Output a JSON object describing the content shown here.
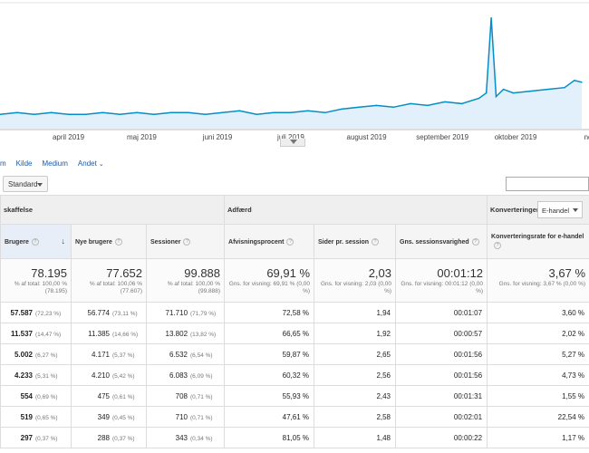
{
  "chart": {
    "month_labels": [
      "april 2019",
      "maj 2019",
      "juni 2019",
      "juli 2019",
      "august 2019",
      "september 2019",
      "oktober 2019",
      "novemb"
    ],
    "line_color": "#058dc7",
    "area_color": "#e1f0fa"
  },
  "chart_data": {
    "type": "area",
    "x": [
      "2019-03-18",
      "2019-03-25",
      "2019-04-01",
      "2019-04-08",
      "2019-04-15",
      "2019-04-22",
      "2019-04-29",
      "2019-05-06",
      "2019-05-13",
      "2019-05-20",
      "2019-05-27",
      "2019-06-03",
      "2019-06-10",
      "2019-06-17",
      "2019-06-24",
      "2019-07-01",
      "2019-07-08",
      "2019-07-15",
      "2019-07-22",
      "2019-07-29",
      "2019-08-05",
      "2019-08-12",
      "2019-08-19",
      "2019-08-26",
      "2019-09-02",
      "2019-09-09",
      "2019-09-16",
      "2019-09-23",
      "2019-09-30",
      "2019-10-03",
      "2019-10-05",
      "2019-10-07",
      "2019-10-10",
      "2019-10-14",
      "2019-10-21",
      "2019-10-28",
      "2019-11-04",
      "2019-11-08",
      "2019-11-11"
    ],
    "values": [
      8,
      9,
      8,
      9,
      8,
      8,
      9,
      8,
      9,
      8,
      9,
      9,
      8,
      9,
      10,
      8,
      9,
      9,
      10,
      9,
      11,
      12,
      13,
      12,
      14,
      13,
      15,
      14,
      17,
      20,
      62,
      18,
      22,
      20,
      21,
      22,
      23,
      27,
      26
    ],
    "xlabel": "",
    "ylabel": ""
  },
  "dimension_links": [
    "m",
    "Kilde",
    "Medium",
    "Andet"
  ],
  "toolbar": {
    "standard_label": "Standard"
  },
  "groups": {
    "acquisition": "skaffelse",
    "behavior": "Adfærd",
    "conversions": "Konverteringer",
    "conversion_select": "E-handel"
  },
  "columns": [
    "Brugere",
    "Nye brugere",
    "Sessioner",
    "Afvisningsprocent",
    "Sider pr. session",
    "Gns. sessionsvarighed",
    "Konverteringsrate for e-handel"
  ],
  "totals": [
    {
      "value": "78.195",
      "sub": "% af total: 100,00 % (78.195)"
    },
    {
      "value": "77.652",
      "sub": "% af total: 100,06 % (77.607)"
    },
    {
      "value": "99.888",
      "sub": "% af total: 100,00 % (99.888)"
    },
    {
      "value": "69,91 %",
      "sub": "Gns. for visning: 69,91 % (0,00 %)"
    },
    {
      "value": "2,03",
      "sub": "Gns. for visning: 2,03 (0,00 %)"
    },
    {
      "value": "00:01:12",
      "sub": "Gns. for visning: 00:01:12 (0,00 %)"
    },
    {
      "value": "3,67 %",
      "sub": "Gns. for visning: 3,67 % (0,00 %)"
    }
  ],
  "rows": [
    {
      "users": "57.587",
      "users_pct": "(72,23 %)",
      "new_users": "56.774",
      "new_pct": "(73,11 %)",
      "sessions": "71.710",
      "sess_pct": "(71,79 %)",
      "bounce": "72,58 %",
      "pages": "1,94",
      "duration": "00:01:07",
      "conv": "3,60 %"
    },
    {
      "users": "11.537",
      "users_pct": "(14,47 %)",
      "new_users": "11.385",
      "new_pct": "(14,66 %)",
      "sessions": "13.802",
      "sess_pct": "(13,82 %)",
      "bounce": "66,65 %",
      "pages": "1,92",
      "duration": "00:00:57",
      "conv": "2,02 %"
    },
    {
      "users": "5.002",
      "users_pct": "(6,27 %)",
      "new_users": "4.171",
      "new_pct": "(5,37 %)",
      "sessions": "6.532",
      "sess_pct": "(6,54 %)",
      "bounce": "59,87 %",
      "pages": "2,65",
      "duration": "00:01:56",
      "conv": "5,27 %"
    },
    {
      "users": "4.233",
      "users_pct": "(5,31 %)",
      "new_users": "4.210",
      "new_pct": "(5,42 %)",
      "sessions": "6.083",
      "sess_pct": "(6,09 %)",
      "bounce": "60,32 %",
      "pages": "2,56",
      "duration": "00:01:56",
      "conv": "4,73 %"
    },
    {
      "users": "554",
      "users_pct": "(0,69 %)",
      "new_users": "475",
      "new_pct": "(0,61 %)",
      "sessions": "708",
      "sess_pct": "(0,71 %)",
      "bounce": "55,93 %",
      "pages": "2,43",
      "duration": "00:01:31",
      "conv": "1,55 %"
    },
    {
      "users": "519",
      "users_pct": "(0,65 %)",
      "new_users": "349",
      "new_pct": "(0,45 %)",
      "sessions": "710",
      "sess_pct": "(0,71 %)",
      "bounce": "47,61 %",
      "pages": "2,58",
      "duration": "00:02:01",
      "conv": "22,54 %"
    },
    {
      "users": "297",
      "users_pct": "(0,37 %)",
      "new_users": "288",
      "new_pct": "(0,37 %)",
      "sessions": "343",
      "sess_pct": "(0,34 %)",
      "bounce": "81,05 %",
      "pages": "1,48",
      "duration": "00:00:22",
      "conv": "1,17 %"
    }
  ]
}
